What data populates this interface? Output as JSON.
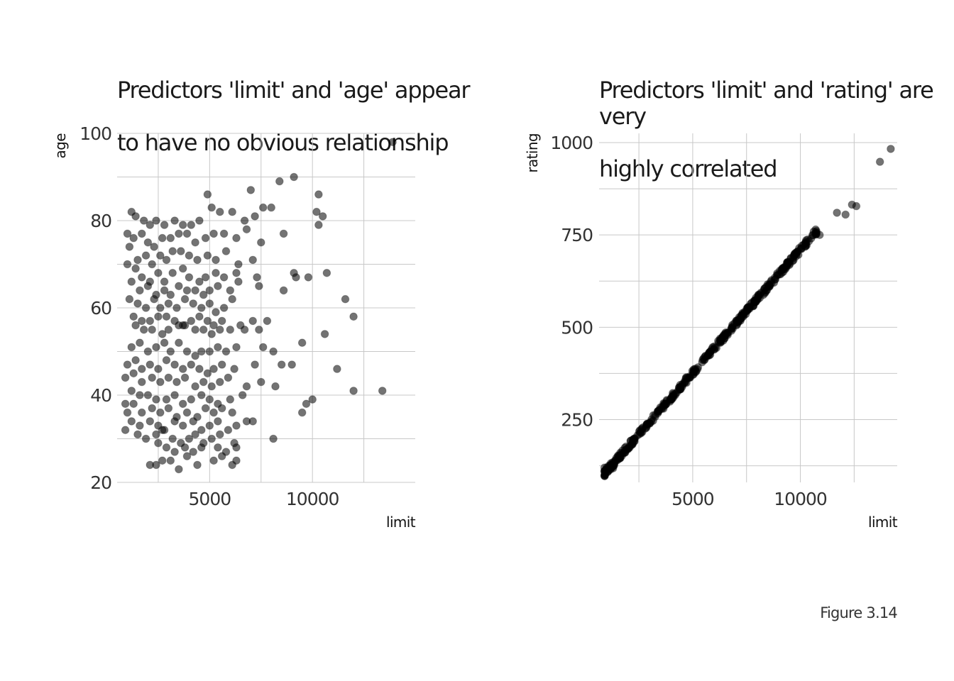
{
  "caption": "Figure 3.14",
  "colors": {
    "point": "#000000",
    "grid_major": "#c8c8c8",
    "grid_minor": "#e0e0e0"
  },
  "chart_data": [
    {
      "type": "scatter",
      "title_lines": [
        "Predictors 'limit' and 'age' appear",
        "to have no obvious relationship"
      ],
      "xlabel": "limit",
      "ylabel": "age",
      "xlim": [
        500,
        15000
      ],
      "ylim": [
        20,
        100
      ],
      "xticks": [
        5000,
        10000
      ],
      "xminor": [
        2500,
        5000,
        7500,
        10000,
        12500
      ],
      "yticks": [
        20,
        40,
        60,
        80,
        100
      ],
      "grid": true,
      "point_alpha": 0.55,
      "points": [
        [
          1200,
          82
        ],
        [
          1400,
          81
        ],
        [
          1800,
          80
        ],
        [
          2100,
          79
        ],
        [
          2400,
          80
        ],
        [
          2800,
          79
        ],
        [
          3300,
          80
        ],
        [
          3700,
          79
        ],
        [
          4100,
          79
        ],
        [
          4500,
          80
        ],
        [
          5100,
          83
        ],
        [
          5500,
          82
        ],
        [
          6100,
          82
        ],
        [
          6700,
          80
        ],
        [
          7200,
          81
        ],
        [
          7600,
          83
        ],
        [
          8000,
          83
        ],
        [
          1000,
          77
        ],
        [
          1300,
          76
        ],
        [
          1700,
          77
        ],
        [
          2000,
          75
        ],
        [
          2300,
          74
        ],
        [
          2700,
          76
        ],
        [
          3100,
          76
        ],
        [
          3500,
          77
        ],
        [
          3900,
          77
        ],
        [
          4300,
          75
        ],
        [
          4800,
          76
        ],
        [
          5200,
          77
        ],
        [
          5700,
          77
        ],
        [
          6300,
          76
        ],
        [
          6800,
          78
        ],
        [
          7500,
          75
        ],
        [
          8600,
          77
        ],
        [
          1100,
          74
        ],
        [
          1500,
          71
        ],
        [
          1900,
          72
        ],
        [
          2200,
          70
        ],
        [
          2600,
          72
        ],
        [
          2900,
          71
        ],
        [
          3200,
          73
        ],
        [
          3600,
          73
        ],
        [
          4000,
          72
        ],
        [
          4400,
          71
        ],
        [
          4900,
          72
        ],
        [
          5300,
          71
        ],
        [
          5800,
          73
        ],
        [
          6400,
          70
        ],
        [
          7100,
          71
        ],
        [
          9100,
          68
        ],
        [
          10700,
          68
        ],
        [
          1000,
          70
        ],
        [
          1400,
          69
        ],
        [
          1700,
          67
        ],
        [
          2100,
          66
        ],
        [
          2500,
          68
        ],
        [
          2800,
          66
        ],
        [
          3200,
          68
        ],
        [
          3700,
          69
        ],
        [
          4000,
          67
        ],
        [
          4500,
          66
        ],
        [
          4800,
          67
        ],
        [
          5300,
          68
        ],
        [
          5700,
          67
        ],
        [
          6300,
          68
        ],
        [
          7300,
          67
        ],
        [
          9200,
          67
        ],
        [
          9800,
          67
        ],
        [
          1200,
          66
        ],
        [
          1600,
          64
        ],
        [
          2000,
          65
        ],
        [
          2400,
          63
        ],
        [
          2800,
          64
        ],
        [
          3100,
          63
        ],
        [
          3500,
          65
        ],
        [
          3900,
          64
        ],
        [
          4300,
          64
        ],
        [
          4700,
          63
        ],
        [
          5000,
          64
        ],
        [
          5400,
          65
        ],
        [
          6000,
          64
        ],
        [
          6400,
          66
        ],
        [
          7400,
          65
        ],
        [
          8600,
          64
        ],
        [
          1100,
          62
        ],
        [
          1500,
          61
        ],
        [
          1900,
          60
        ],
        [
          2300,
          62
        ],
        [
          2600,
          60
        ],
        [
          3000,
          61
        ],
        [
          3400,
          60
        ],
        [
          3800,
          62
        ],
        [
          4200,
          61
        ],
        [
          4600,
          60
        ],
        [
          5000,
          61
        ],
        [
          5300,
          59
        ],
        [
          5700,
          60
        ],
        [
          6100,
          62
        ],
        [
          11600,
          62
        ],
        [
          1300,
          58
        ],
        [
          1700,
          57
        ],
        [
          2100,
          57
        ],
        [
          2500,
          58
        ],
        [
          2900,
          58
        ],
        [
          3300,
          57
        ],
        [
          3700,
          56
        ],
        [
          4100,
          57
        ],
        [
          4500,
          58
        ],
        [
          4900,
          57
        ],
        [
          5200,
          56
        ],
        [
          5600,
          57
        ],
        [
          6500,
          56
        ],
        [
          7100,
          57
        ],
        [
          7800,
          57
        ],
        [
          12000,
          58
        ],
        [
          1400,
          56
        ],
        [
          1800,
          55
        ],
        [
          2200,
          55
        ],
        [
          2700,
          54
        ],
        [
          3000,
          55
        ],
        [
          3500,
          56
        ],
        [
          3800,
          56
        ],
        [
          4300,
          55
        ],
        [
          4700,
          55
        ],
        [
          5100,
          54
        ],
        [
          5500,
          55
        ],
        [
          6000,
          55
        ],
        [
          6700,
          55
        ],
        [
          7400,
          55
        ],
        [
          10600,
          54
        ],
        [
          1200,
          51
        ],
        [
          1600,
          52
        ],
        [
          2000,
          50
        ],
        [
          2400,
          51
        ],
        [
          2800,
          52
        ],
        [
          3100,
          50
        ],
        [
          3500,
          52
        ],
        [
          3900,
          50
        ],
        [
          4300,
          49
        ],
        [
          4600,
          50
        ],
        [
          5000,
          50
        ],
        [
          5400,
          51
        ],
        [
          5800,
          50
        ],
        [
          6300,
          51
        ],
        [
          7600,
          51
        ],
        [
          8100,
          50
        ],
        [
          9500,
          52
        ],
        [
          1000,
          47
        ],
        [
          1400,
          48
        ],
        [
          1700,
          46
        ],
        [
          2100,
          47
        ],
        [
          2500,
          46
        ],
        [
          2900,
          48
        ],
        [
          3300,
          47
        ],
        [
          3700,
          46
        ],
        [
          4100,
          47
        ],
        [
          4500,
          46
        ],
        [
          4900,
          45
        ],
        [
          5200,
          46
        ],
        [
          5600,
          47
        ],
        [
          6200,
          46
        ],
        [
          7200,
          47
        ],
        [
          8500,
          47
        ],
        [
          9000,
          47
        ],
        [
          11200,
          46
        ],
        [
          900,
          44
        ],
        [
          1300,
          45
        ],
        [
          1700,
          43
        ],
        [
          2200,
          44
        ],
        [
          2600,
          43
        ],
        [
          3000,
          44
        ],
        [
          3400,
          43
        ],
        [
          3800,
          44
        ],
        [
          4300,
          42
        ],
        [
          4700,
          43
        ],
        [
          5100,
          42
        ],
        [
          5500,
          43
        ],
        [
          5900,
          44
        ],
        [
          6800,
          42
        ],
        [
          7500,
          43
        ],
        [
          8200,
          42
        ],
        [
          12000,
          41
        ],
        [
          13400,
          41
        ],
        [
          1200,
          41
        ],
        [
          1600,
          40
        ],
        [
          2000,
          40
        ],
        [
          2400,
          39
        ],
        [
          2900,
          39
        ],
        [
          3300,
          40
        ],
        [
          3700,
          38
        ],
        [
          4100,
          39
        ],
        [
          4600,
          40
        ],
        [
          5000,
          39
        ],
        [
          5400,
          38
        ],
        [
          6000,
          39
        ],
        [
          6600,
          40
        ],
        [
          9700,
          38
        ],
        [
          10000,
          39
        ],
        [
          900,
          38
        ],
        [
          1000,
          36
        ],
        [
          1300,
          38
        ],
        [
          1700,
          36
        ],
        [
          2200,
          37
        ],
        [
          2600,
          36
        ],
        [
          3000,
          37
        ],
        [
          3400,
          35
        ],
        [
          3900,
          36
        ],
        [
          4400,
          35
        ],
        [
          4800,
          37
        ],
        [
          5200,
          36
        ],
        [
          5600,
          37
        ],
        [
          6100,
          36
        ],
        [
          9500,
          36
        ],
        [
          1200,
          34
        ],
        [
          1600,
          33
        ],
        [
          2100,
          34
        ],
        [
          2500,
          33
        ],
        [
          2800,
          32
        ],
        [
          3300,
          34
        ],
        [
          3700,
          33
        ],
        [
          4200,
          34
        ],
        [
          4600,
          32
        ],
        [
          5000,
          33
        ],
        [
          5400,
          34
        ],
        [
          5900,
          32
        ],
        [
          6300,
          33
        ],
        [
          6800,
          34
        ],
        [
          7100,
          34
        ],
        [
          900,
          32
        ],
        [
          1500,
          31
        ],
        [
          1900,
          30
        ],
        [
          2400,
          31
        ],
        [
          2700,
          32
        ],
        [
          3200,
          30
        ],
        [
          3600,
          29
        ],
        [
          4000,
          30
        ],
        [
          4300,
          31
        ],
        [
          4700,
          29
        ],
        [
          5100,
          30
        ],
        [
          5500,
          31
        ],
        [
          6200,
          29
        ],
        [
          8100,
          30
        ],
        [
          2500,
          29
        ],
        [
          2900,
          28
        ],
        [
          3300,
          27
        ],
        [
          3800,
          28
        ],
        [
          4200,
          27
        ],
        [
          4600,
          28
        ],
        [
          5400,
          28
        ],
        [
          5800,
          27
        ],
        [
          6300,
          28
        ],
        [
          2100,
          24
        ],
        [
          2400,
          24
        ],
        [
          2700,
          25
        ],
        [
          3100,
          25
        ],
        [
          3500,
          23
        ],
        [
          3900,
          26
        ],
        [
          4400,
          24
        ],
        [
          5200,
          25
        ],
        [
          5600,
          26
        ],
        [
          6100,
          24
        ],
        [
          6300,
          25
        ],
        [
          8400,
          89
        ],
        [
          9100,
          90
        ],
        [
          10300,
          86
        ],
        [
          10200,
          82
        ],
        [
          10300,
          79
        ],
        [
          10500,
          81
        ],
        [
          7000,
          87
        ],
        [
          4900,
          86
        ],
        [
          13900,
          98
        ]
      ]
    },
    {
      "type": "scatter",
      "title_lines": [
        "Predictors 'limit' and 'rating' are very",
        "highly correlated"
      ],
      "xlabel": "limit",
      "ylabel": "rating",
      "xlim": [
        650,
        14500
      ],
      "ylim": [
        80,
        1025
      ],
      "xticks": [
        5000,
        10000
      ],
      "xminor": [
        2500,
        5000,
        7500,
        10000,
        12500
      ],
      "yticks": [
        250,
        500,
        750,
        1000
      ],
      "yminor": [
        125,
        250,
        375,
        500,
        625,
        750,
        875,
        1000
      ],
      "grid": true,
      "point_alpha": 0.55,
      "trend": {
        "slope": 0.0666,
        "intercept": 44,
        "from": 900,
        "to": 10800,
        "count": 400,
        "jitter": 8
      },
      "points": [
        [
          900,
          120
        ],
        [
          900,
          98
        ],
        [
          1000,
          120
        ],
        [
          1100,
          125
        ],
        [
          1300,
          118
        ],
        [
          1200,
          132
        ],
        [
          10900,
          750
        ],
        [
          11700,
          810
        ],
        [
          12100,
          805
        ],
        [
          12400,
          832
        ],
        [
          12600,
          828
        ],
        [
          13700,
          948
        ],
        [
          14200,
          983
        ]
      ]
    }
  ]
}
